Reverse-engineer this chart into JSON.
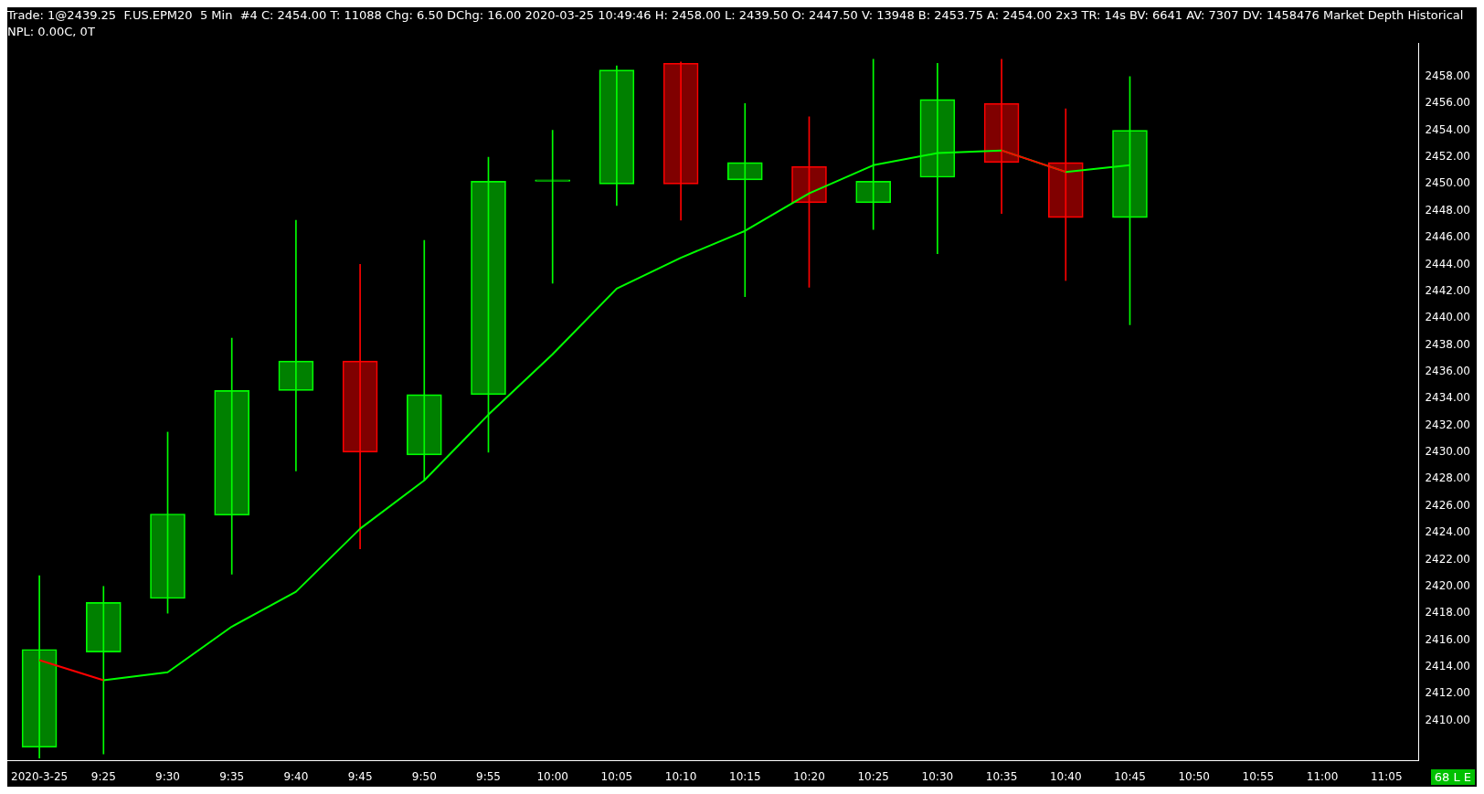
{
  "chart_data": {
    "type": "candlestick",
    "title": "Trade: 1@2439.25  F.US.EPM20  5 Min  #4 C: 2454.00 T: 11088 Chg: 6.50 DChg: 16.00 2020-03-25 10:49:46 H: 2458.00 L: 2439.50 O: 2447.50 V: 13948 B: 2453.75 A: 2454.00 2x3 TR: 14s BV: 6641 AV: 7307 DV: 1458476 Market Depth Historical",
    "subtitle": "NPL: 0.00C, 0T",
    "categories": [
      "2020-3-25",
      "9:25",
      "9:30",
      "9:35",
      "9:40",
      "9:45",
      "9:50",
      "9:55",
      "10:00",
      "10:05",
      "10:10",
      "10:15",
      "10:20",
      "10:25",
      "10:30",
      "10:35",
      "10:40",
      "10:45",
      "10:50",
      "10:55",
      "11:00",
      "11:05"
    ],
    "ohlc": [
      [
        2408,
        2420.8,
        2407.2,
        2415.3
      ],
      [
        2415.1,
        2420,
        2407.5,
        2418.8
      ],
      [
        2419.1,
        2431.5,
        2418,
        2425.4
      ],
      [
        2425.3,
        2438.5,
        2420.9,
        2434.6
      ],
      [
        2434.6,
        2447.3,
        2428.6,
        2436.8
      ],
      [
        2436.8,
        2444,
        2422.8,
        2430
      ],
      [
        2429.8,
        2445.8,
        2427.9,
        2434.3
      ],
      [
        2434.3,
        2452,
        2430,
        2450.2
      ],
      [
        2450.2,
        2454,
        2442.6,
        2450.3
      ],
      [
        2450,
        2458.8,
        2448.4,
        2458.5
      ],
      [
        2459,
        2459.1,
        2447.3,
        2450
      ],
      [
        2450.3,
        2456,
        2441.6,
        2451.6
      ],
      [
        2451.3,
        2455,
        2442.3,
        2448.6
      ],
      [
        2448.6,
        2459.3,
        2446.6,
        2450.2
      ],
      [
        2450.5,
        2459,
        2444.8,
        2456.3
      ],
      [
        2456,
        2459.3,
        2447.8,
        2451.6
      ],
      [
        2451.6,
        2455.6,
        2442.8,
        2447.5
      ],
      [
        2447.5,
        2458,
        2439.5,
        2454
      ],
      null,
      null,
      null,
      null
    ],
    "colors": [
      "#00ff00",
      "#00ff00",
      "#00ff00",
      "#00ff00",
      "#00ff00",
      "#ff0000",
      "#00ff00",
      "#00ff00",
      "#00ff00",
      "#00ff00",
      "#ff0000",
      "#00ff00",
      "#ff0000",
      "#00ff00",
      "#00ff00",
      "#ff0000",
      "#ff0000",
      "#00ff00",
      null,
      null,
      null,
      null
    ],
    "series": [
      {
        "type": "line",
        "color": "#00ff00",
        "values": [
          null,
          2413,
          2413.6,
          2417,
          2419.6,
          2424.3,
          2427.9,
          2432.8,
          2437.3,
          2442.2,
          2444.5,
          2446.5,
          2449.3,
          2451.4,
          2452.3,
          2452.5,
          2450.9,
          2451.4,
          null,
          null,
          null,
          null
        ]
      },
      {
        "type": "line",
        "color": "#ff0000",
        "values": [
          2414.5,
          2413,
          null,
          null,
          null,
          null,
          null,
          null,
          null,
          null,
          null,
          null,
          null,
          null,
          null,
          2452.5,
          2450.9,
          null,
          null,
          null,
          null,
          null
        ]
      }
    ],
    "ylim": [
      2407,
      2460.5
    ],
    "yticks": [
      {
        "value": 2410,
        "label": "2410.00"
      },
      {
        "value": 2412,
        "label": "2412.00"
      },
      {
        "value": 2414,
        "label": "2414.00"
      },
      {
        "value": 2416,
        "label": "2416.00"
      },
      {
        "value": 2418,
        "label": "2418.00"
      },
      {
        "value": 2420,
        "label": "2420.00"
      },
      {
        "value": 2422,
        "label": "2422.00"
      },
      {
        "value": 2424,
        "label": "2424.00"
      },
      {
        "value": 2426,
        "label": "2426.00"
      },
      {
        "value": 2428,
        "label": "2428.00"
      },
      {
        "value": 2430,
        "label": "2430.00"
      },
      {
        "value": 2432,
        "label": "2432.00"
      },
      {
        "value": 2434,
        "label": "2434.00"
      },
      {
        "value": 2436,
        "label": "2436.00"
      },
      {
        "value": 2438,
        "label": "2438.00"
      },
      {
        "value": 2440,
        "label": "2440.00"
      },
      {
        "value": 2442,
        "label": "2442.00"
      },
      {
        "value": 2444,
        "label": "2444.00"
      },
      {
        "value": 2446,
        "label": "2446.00"
      },
      {
        "value": 2448,
        "label": "2448.00"
      },
      {
        "value": 2450,
        "label": "2450.00"
      },
      {
        "value": 2452,
        "label": "2452.00"
      },
      {
        "value": 2454,
        "label": "2454.00"
      },
      {
        "value": 2456,
        "label": "2456.00"
      },
      {
        "value": 2458,
        "label": "2458.00"
      }
    ],
    "grid": false,
    "legend": false,
    "annotations": [
      "68 L E"
    ]
  }
}
